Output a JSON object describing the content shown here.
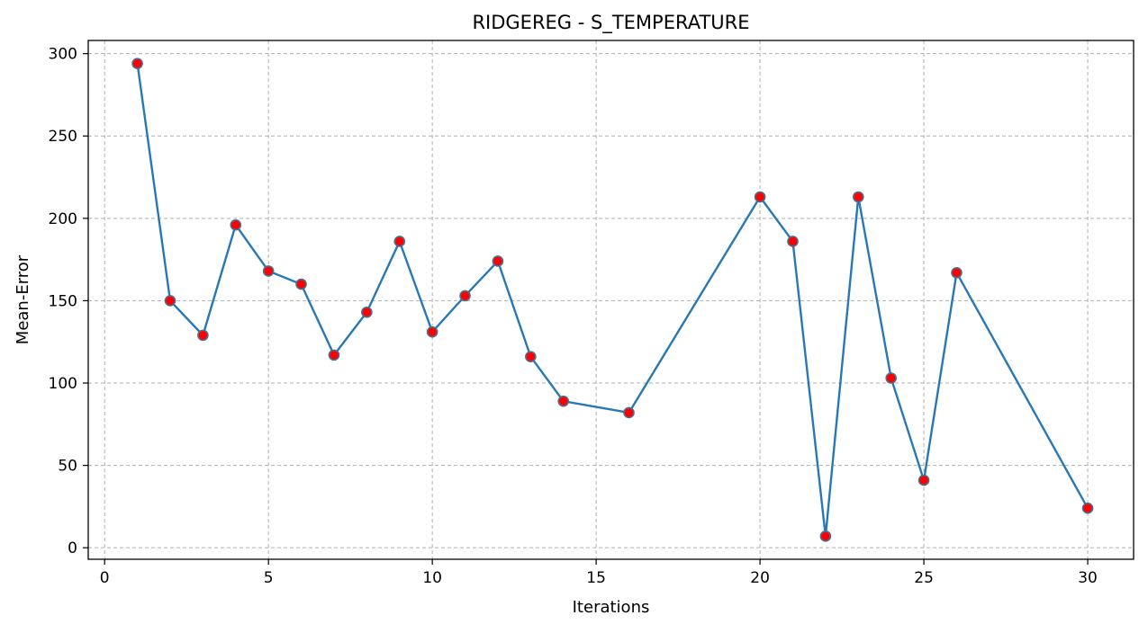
{
  "chart_data": {
    "type": "line",
    "title": "RIDGEREG - S_TEMPERATURE",
    "xlabel": "Iterations",
    "ylabel": "Mean-Error",
    "xlim": [
      -0.5,
      31.4
    ],
    "ylim": [
      -7,
      308
    ],
    "xticks": [
      0,
      5,
      10,
      15,
      20,
      25,
      30
    ],
    "yticks": [
      0,
      50,
      100,
      150,
      200,
      250,
      300
    ],
    "grid": true,
    "grid_style": "dashed",
    "line_color": "#2878b5",
    "marker_color": "#ff0000",
    "marker_edge_color": "#4a6f8f",
    "series": [
      {
        "x": [
          1,
          2,
          3,
          4,
          5,
          6,
          7,
          8,
          9,
          10,
          11,
          12,
          13,
          14,
          16,
          20,
          21,
          22,
          23,
          24,
          25,
          26,
          30
        ],
        "values": [
          294,
          150,
          129,
          196,
          168,
          160,
          117,
          143,
          186,
          131,
          153,
          174,
          116,
          89,
          82,
          213,
          186,
          7,
          213,
          103,
          41,
          167,
          24
        ]
      }
    ]
  }
}
